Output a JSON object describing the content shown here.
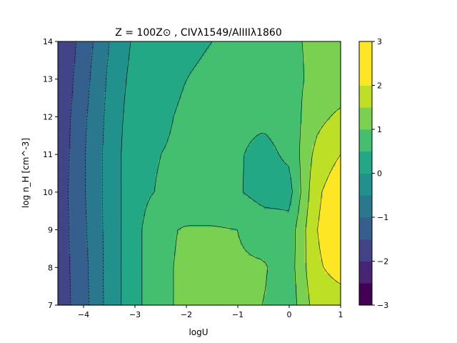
{
  "chart_data": {
    "type": "heatmap",
    "title": "Z = 100Z⊙ , CIVλ1549/AlIIIλ1860",
    "xlabel": "logU",
    "ylabel": "log n_H [cm^-3]",
    "xlim": [
      -4.5,
      1
    ],
    "ylim": [
      7,
      14
    ],
    "xticks": [
      -4,
      -3,
      -2,
      -1,
      0,
      1
    ],
    "xtick_labels": [
      "−4",
      "−3",
      "−2",
      "−1",
      "0",
      "1"
    ],
    "yticks": [
      7,
      8,
      9,
      10,
      11,
      12,
      13,
      14
    ],
    "ytick_labels": [
      "7",
      "8",
      "9",
      "10",
      "11",
      "12",
      "13",
      "14"
    ],
    "x": [
      -4.5,
      -4.0,
      -3.5,
      -3.0,
      -2.5,
      -2.0,
      -1.5,
      -1.0,
      -0.5,
      0.0,
      0.5,
      1.0
    ],
    "y": [
      7,
      8,
      9,
      10,
      11,
      12,
      13,
      14
    ],
    "z": [
      [
        -1.8,
        -1.2,
        -0.3,
        0.35,
        0.9,
        1.1,
        1.35,
        1.1,
        1.0,
        0.7,
        1.7,
        1.75
      ],
      [
        -1.8,
        -1.15,
        -0.3,
        0.35,
        0.9,
        1.1,
        1.15,
        1.05,
        1.05,
        0.75,
        1.9,
        2.2
      ],
      [
        -1.8,
        -1.1,
        -0.3,
        0.35,
        0.9,
        1.05,
        1.05,
        1.0,
        0.8,
        0.7,
        1.95,
        2.45
      ],
      [
        -1.8,
        -1.05,
        -0.3,
        0.35,
        0.55,
        0.6,
        0.6,
        0.55,
        0.3,
        0.3,
        1.85,
        2.4
      ],
      [
        -1.85,
        -1.05,
        -0.3,
        0.35,
        0.5,
        0.55,
        0.6,
        0.55,
        0.35,
        0.6,
        1.6,
        2.0
      ],
      [
        -1.9,
        -1.1,
        -0.35,
        0.3,
        0.45,
        0.55,
        0.6,
        0.6,
        0.6,
        0.7,
        1.35,
        1.6
      ],
      [
        -1.95,
        -1.2,
        -0.4,
        0.2,
        0.4,
        0.5,
        0.55,
        0.6,
        0.7,
        0.8,
        1.15,
        1.2
      ],
      [
        -2.0,
        -1.3,
        -0.5,
        0.1,
        0.3,
        0.45,
        0.5,
        0.55,
        0.75,
        0.9,
        1.1,
        1.15
      ]
    ],
    "levels": [
      -3.0,
      -2.5,
      -2.0,
      -1.5,
      -1.0,
      -0.5,
      0.0,
      0.5,
      1.0,
      1.5,
      2.0,
      2.5,
      3.0
    ],
    "line_levels": [
      -2.0,
      -1.5,
      -1.0,
      -0.5,
      0.0,
      0.5,
      1.0,
      1.5,
      2.0
    ],
    "colorbar_ticks": [
      -3,
      -2,
      -1,
      0,
      1,
      2,
      3
    ],
    "colorbar_tick_labels": [
      "−3",
      "−2",
      "−1",
      "0",
      "1",
      "2",
      "3"
    ],
    "colormap": [
      "#440154",
      "#482475",
      "#414487",
      "#355f8d",
      "#2a788e",
      "#21918c",
      "#22a884",
      "#44bf70",
      "#7ad151",
      "#bddf26",
      "#fde725",
      "#fde725"
    ],
    "grid": false
  }
}
